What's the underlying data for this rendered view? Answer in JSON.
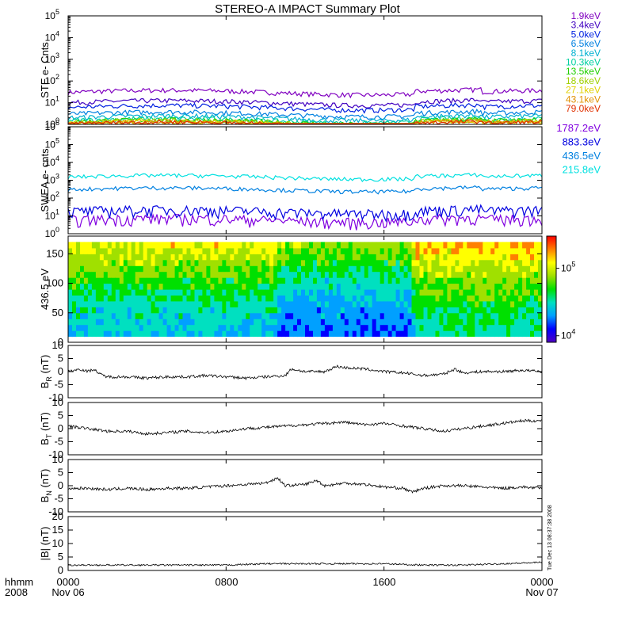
{
  "title": "STEREO-A IMPACT Summary Plot",
  "colors": {
    "ste": [
      "#8000c0",
      "#4000c0",
      "#0020e0",
      "#0080e0",
      "#00b0d0",
      "#00d0a0",
      "#20d000",
      "#a0d000",
      "#e0d000",
      "#e09000",
      "#e03000"
    ],
    "swea": [
      "#8000e0",
      "#0000e0",
      "#0080e0",
      "#00e0e0"
    ],
    "colorbar": [
      "#5000c0",
      "#0000ff",
      "#00a0ff",
      "#00e0c0",
      "#00e000",
      "#a0e000",
      "#ffff00",
      "#ff8000",
      "#ff0000"
    ]
  },
  "time_axis": {
    "row1": [
      "hhmm",
      "0000",
      "0800",
      "1600",
      "0000"
    ],
    "row2": [
      "2008",
      "Nov 06",
      "",
      "",
      "Nov 07"
    ],
    "x_range_hours": [
      0,
      24
    ],
    "tick_hours": [
      0,
      8,
      16,
      24
    ]
  },
  "timestamp": "Tue Dec 13 08:37:38 2008",
  "chart_data": [
    {
      "type": "line",
      "panel": "ste",
      "ylabel": "STE e- Cnts",
      "yscale": "log",
      "ylim": [
        1,
        100000
      ],
      "tick_exponents": [
        "0",
        "1",
        "2",
        "3",
        "4",
        "5"
      ],
      "series": [
        {
          "name": "1.9keV",
          "level": 30
        },
        {
          "name": "3.4keV",
          "level": 10
        },
        {
          "name": "5.0keV",
          "level": 6
        },
        {
          "name": "6.5keV",
          "level": 3
        },
        {
          "name": "8.1keV",
          "level": 2
        },
        {
          "name": "10.3keV",
          "level": 1.5
        },
        {
          "name": "13.5keV",
          "level": 1.3
        },
        {
          "name": "18.6keV",
          "level": 1.2
        },
        {
          "name": "27.1keV",
          "level": 1.1
        },
        {
          "name": "43.1keV",
          "level": 1.05
        },
        {
          "name": "79.0keV",
          "level": 1.02
        }
      ]
    },
    {
      "type": "line",
      "panel": "swea",
      "ylabel": "SWEA e- cnts",
      "yscale": "log",
      "ylim": [
        1,
        1000000
      ],
      "tick_exponents": [
        "0",
        "1",
        "2",
        "3",
        "4",
        "5",
        "6"
      ],
      "series": [
        {
          "name": "1787.2eV",
          "level": 5
        },
        {
          "name": "883.3eV",
          "level": 15
        },
        {
          "name": "436.5eV",
          "level": 300
        },
        {
          "name": "215.8eV",
          "level": 1500
        }
      ]
    },
    {
      "type": "heatmap",
      "panel": "pad",
      "ylabel": "436.5 eV",
      "ylim": [
        0,
        180
      ],
      "yticks": [
        "0",
        "50",
        "100",
        "150"
      ],
      "colorbar_label": "10",
      "colorbar_ticks": [
        {
          "exp": "4",
          "value": 10000
        },
        {
          "exp": "5",
          "value": 100000
        }
      ],
      "colorbar_range": [
        8000,
        300000
      ]
    },
    {
      "type": "line",
      "panel": "br",
      "ylabel": "B",
      "ysub": "R",
      "yunit": " (nT)",
      "ylim": [
        -10,
        10
      ],
      "yticks": [
        "-10",
        "-5",
        "0",
        "5",
        "10"
      ],
      "x_hours": [
        0,
        0.6,
        1,
        1.3,
        1.6,
        2,
        3,
        4,
        5,
        6,
        7,
        8,
        9,
        10,
        11,
        11.3,
        12,
        13,
        13.6,
        14,
        15,
        16,
        17,
        18,
        19,
        19.6,
        20,
        21,
        22,
        23,
        24
      ],
      "values": [
        0,
        1,
        0,
        1,
        -1,
        -2,
        -2,
        -2.5,
        -2,
        -2,
        -1.5,
        -2,
        -2.5,
        -2,
        -1.5,
        1,
        0,
        0,
        2,
        1.5,
        1,
        0,
        -0.5,
        -1.5,
        -1,
        1,
        -0.5,
        0,
        0,
        0.5,
        0
      ]
    },
    {
      "type": "line",
      "panel": "bt",
      "ylabel": "B",
      "ysub": "T",
      "yunit": " (nT)",
      "ylim": [
        -10,
        10
      ],
      "yticks": [
        "-10",
        "-5",
        "0",
        "5",
        "10"
      ],
      "x_hours": [
        0,
        1,
        2,
        3,
        4,
        5,
        6,
        7,
        8,
        9,
        10,
        11,
        12,
        13,
        14,
        15,
        16,
        17,
        18,
        19,
        20,
        21,
        22,
        23,
        24
      ],
      "values": [
        1,
        0,
        -1,
        -1,
        -2,
        -1.5,
        -1,
        -1.5,
        -1,
        0,
        0.5,
        1,
        1.5,
        2,
        2.5,
        1.5,
        2,
        1,
        0,
        -1,
        0,
        1,
        2,
        3,
        3
      ]
    },
    {
      "type": "line",
      "panel": "bn",
      "ylabel": "B",
      "ysub": "N",
      "yunit": " (nT)",
      "ylim": [
        -10,
        10
      ],
      "yticks": [
        "-10",
        "-5",
        "0",
        "5",
        "10"
      ],
      "x_hours": [
        0,
        1,
        2,
        3,
        4,
        5,
        6,
        7,
        8,
        9,
        10,
        10.6,
        11,
        12,
        12.6,
        13,
        14,
        15,
        16,
        17,
        17.4,
        18,
        19,
        20,
        21,
        22,
        23,
        24
      ],
      "values": [
        -1,
        -1,
        -1.5,
        -1,
        -1.5,
        -1,
        -1,
        -0.5,
        0,
        0.5,
        1,
        3,
        0,
        0.5,
        2,
        0,
        1,
        0.5,
        -0.5,
        -1,
        -2.5,
        -1,
        0,
        0,
        -0.5,
        -1,
        -0.5,
        -1
      ]
    },
    {
      "type": "line",
      "panel": "bmag",
      "ylabel": "|B| (nT)",
      "ylim": [
        0,
        20
      ],
      "yticks": [
        "0",
        "5",
        "10",
        "15",
        "20"
      ],
      "x_hours": [
        0,
        2,
        4,
        6,
        8,
        10,
        12,
        14,
        16,
        18,
        20,
        22,
        24
      ],
      "values": [
        2,
        2,
        2,
        2,
        2,
        2.5,
        2.5,
        2.5,
        2.5,
        2,
        2,
        2.5,
        3
      ]
    }
  ]
}
